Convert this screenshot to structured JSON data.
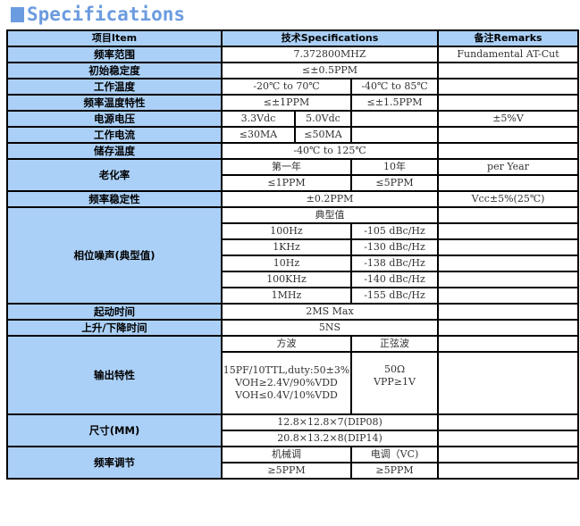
{
  "title": "Specifications",
  "header": {
    "item": "项目Item",
    "spec": "技术Specifications",
    "remarks": "备注Remarks"
  },
  "rows": {
    "freq": {
      "label": "频率范围",
      "value": "7.372800MHZ",
      "remark": "Fundamental AT-Cut"
    },
    "init": {
      "label": "初始稳定度",
      "value": "≤±0.5PPM"
    },
    "optemp": {
      "label": "工作温度",
      "a": "-20℃ to 70℃",
      "b": "-40℃ to 85℃"
    },
    "tempchar": {
      "label": "频率温度特性",
      "a": "≤±1PPM",
      "b": "≤±1.5PPM"
    },
    "voltage": {
      "label": "电源电压",
      "a": "3.3Vdc",
      "b": "5.0Vdc",
      "remark": "±5%V"
    },
    "current": {
      "label": "工作电流",
      "a": "≤30MA",
      "b": "≤50MA"
    },
    "storage": {
      "label": "储存温度",
      "value": "-40℃ to 125℃"
    },
    "aging": {
      "label": "老化率",
      "h1": "第一年",
      "h2": "10年",
      "remark": "per Year",
      "v1": "≤1PPM",
      "v2": "≤5PPM"
    },
    "stability": {
      "label": "频率稳定性",
      "value": "±0.2PPM",
      "remark": "Vcc±5%(25℃)"
    },
    "phase": {
      "label": "相位噪声(典型值)",
      "header": "典型值",
      "items": [
        {
          "f": "100Hz",
          "v": "-105 dBc/Hz"
        },
        {
          "f": "1KHz",
          "v": "-130 dBc/Hz"
        },
        {
          "f": "10Hz",
          "v": "-138 dBc/Hz"
        },
        {
          "f": "100KHz",
          "v": "-140 dBc/Hz"
        },
        {
          "f": "1MHz",
          "v": "-155 dBc/Hz"
        }
      ]
    },
    "startup": {
      "label": "起动时间",
      "value": "2MS Max"
    },
    "rise": {
      "label": "上升/下降时间",
      "value": "5NS"
    },
    "output": {
      "label": "输出特性",
      "h1": "方波",
      "h2": "正弦波",
      "sq1": "15PF/10TTL,duty:50±3%",
      "sq2": "VOH≥2.4V/90%VDD",
      "sq3": "VOH≤0.4V/10%VDD",
      "si1": "50Ω",
      "si2": "VPP≥1V"
    },
    "size": {
      "label": "尺寸(MM)",
      "v1": "12.8×12.8×7(DIP08)",
      "v2": "20.8×13.2×8(DIP14)"
    },
    "adjust": {
      "label": "频率调节",
      "h1": "机械调",
      "h2": "电调（VC)",
      "v1": "≥5PPM",
      "v2": "≥5PPM"
    }
  }
}
